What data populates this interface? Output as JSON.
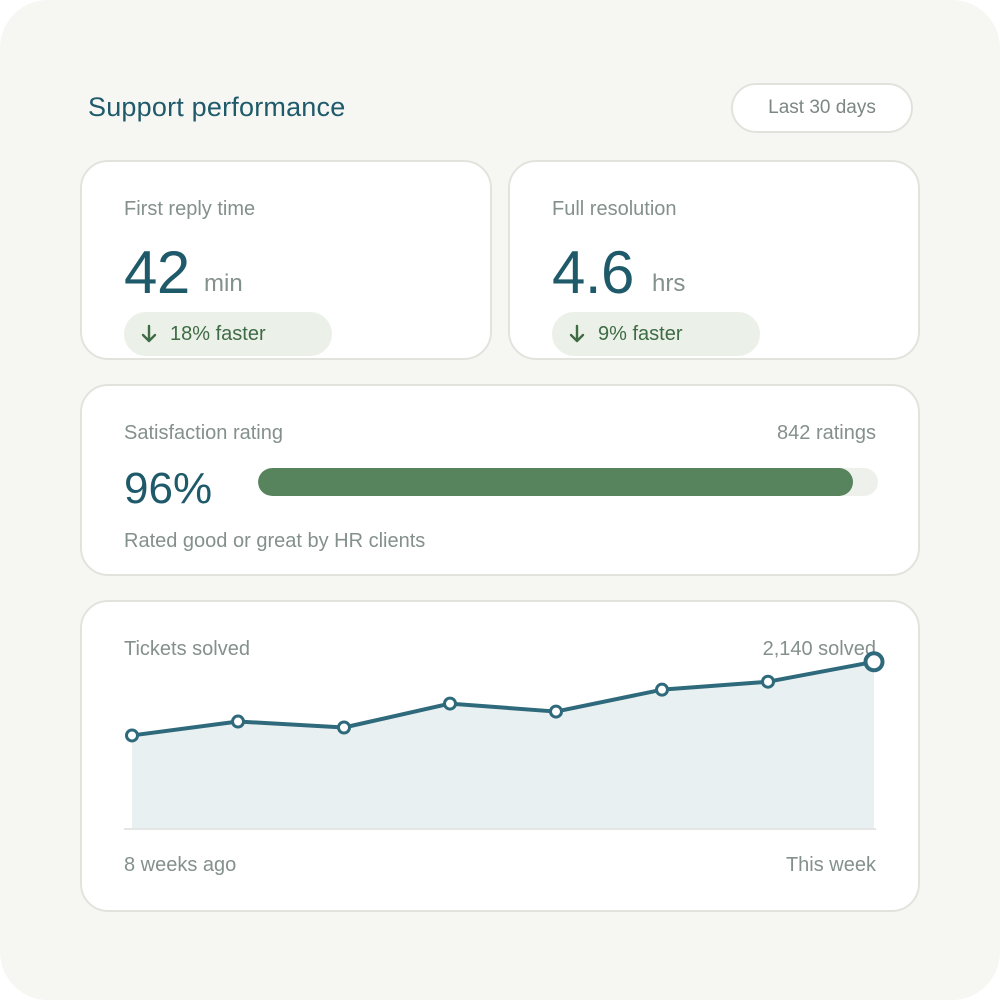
{
  "header": {
    "title": "Support performance",
    "range_label": "Last 30 days"
  },
  "first_reply": {
    "label": "First reply time",
    "value": "42",
    "unit": "min",
    "delta": "18% faster",
    "delta_icon": "arrow-down-icon"
  },
  "resolution": {
    "label": "Full resolution",
    "value": "4.6",
    "unit": "hrs",
    "delta": "9% faster",
    "delta_icon": "arrow-down-icon"
  },
  "satisfaction": {
    "label": "Satisfaction rating",
    "count": "842 ratings",
    "value": "96%",
    "fill_fraction": 0.96,
    "caption": "Rated good or great by HR clients"
  },
  "tickets": {
    "label": "Tickets solved",
    "total": "2,140 solved",
    "start_label": "8 weeks ago",
    "end_label": "This week"
  },
  "colors": {
    "accent": "#1f5a6a",
    "line": "#2e6a7b",
    "area": "#e9f0f1",
    "positive": "#3f6b45",
    "positive_bg": "#ebf0e8",
    "bar_fill": "#57845d"
  },
  "chart_data": {
    "type": "area",
    "x": [
      "8 weeks ago",
      "",
      "",
      "",
      "",
      "",
      "",
      "This week"
    ],
    "series": [
      {
        "values": [
          235,
          270,
          255,
          315,
          295,
          350,
          370,
          420
        ]
      }
    ],
    "title": "Tickets solved",
    "ylim": [
      0,
      520
    ],
    "grid": false,
    "legend": "none"
  }
}
